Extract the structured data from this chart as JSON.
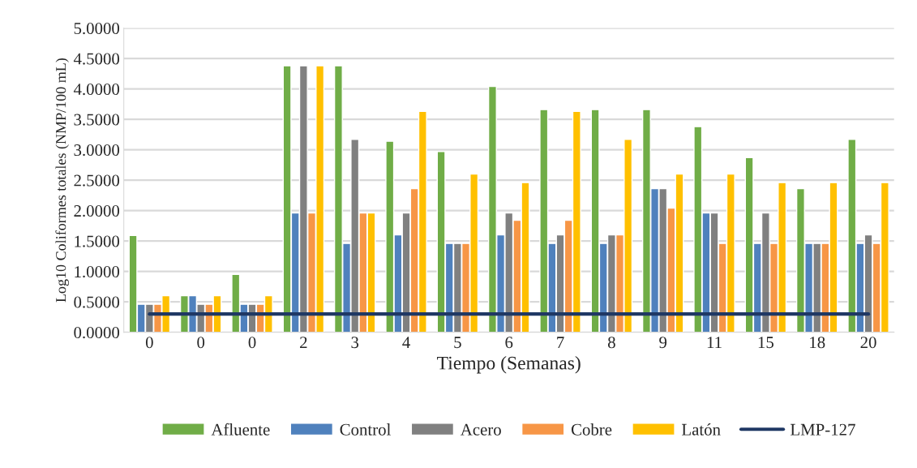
{
  "chart_data": {
    "type": "bar",
    "xlabel": "Tiempo (Semanas)",
    "ylabel": "Log10 Coliformes totales (NMP/100 mL)",
    "categories": [
      "0",
      "0",
      "0",
      "2",
      "3",
      "4",
      "5",
      "6",
      "7",
      "8",
      "9",
      "11",
      "15",
      "18",
      "20"
    ],
    "series": [
      {
        "name": "Afluente",
        "color": "#70ad47",
        "values": [
          1.59,
          0.6,
          0.95,
          4.38,
          4.38,
          3.14,
          2.97,
          4.04,
          3.66,
          3.66,
          3.66,
          3.38,
          2.87,
          2.36,
          3.17
        ]
      },
      {
        "name": "Control",
        "color": "#4f81bd",
        "values": [
          0.46,
          0.6,
          0.46,
          1.96,
          1.46,
          1.6,
          1.46,
          1.6,
          1.46,
          1.46,
          2.36,
          1.96,
          1.46,
          1.46,
          1.46
        ]
      },
      {
        "name": "Acero",
        "color": "#808080",
        "values": [
          0.46,
          0.46,
          0.46,
          4.38,
          3.17,
          1.96,
          1.46,
          1.96,
          1.6,
          1.6,
          2.36,
          1.96,
          1.96,
          1.46,
          1.6
        ]
      },
      {
        "name": "Cobre",
        "color": "#f79646",
        "values": [
          0.46,
          0.46,
          0.46,
          1.96,
          1.96,
          2.36,
          1.46,
          1.84,
          1.84,
          1.6,
          2.04,
          1.46,
          1.46,
          1.46,
          1.46
        ]
      },
      {
        "name": "Latón",
        "color": "#ffc000",
        "values": [
          0.6,
          0.6,
          0.6,
          4.38,
          1.96,
          3.63,
          2.6,
          2.46,
          3.63,
          3.17,
          2.6,
          2.6,
          2.46,
          2.46,
          2.46
        ]
      },
      {
        "name": "LMP-127",
        "type": "line",
        "color": "#1f3864",
        "values": [
          0.3,
          0.3,
          0.3,
          0.3,
          0.3,
          0.3,
          0.3,
          0.3,
          0.3,
          0.3,
          0.3,
          0.3,
          0.3,
          0.3,
          0.3
        ]
      }
    ],
    "ylim": [
      0,
      5
    ],
    "yticks": [
      {
        "value": 0,
        "label": "0.0000"
      },
      {
        "value": 0.5,
        "label": "0.5000"
      },
      {
        "value": 1,
        "label": "1.0000"
      },
      {
        "value": 1.5,
        "label": "1.5000"
      },
      {
        "value": 2,
        "label": "2.0000"
      },
      {
        "value": 2.5,
        "label": "2.5000"
      },
      {
        "value": 3,
        "label": "3.0000"
      },
      {
        "value": 3.5,
        "label": "3.5000"
      },
      {
        "value": 4,
        "label": "4.0000"
      },
      {
        "value": 4.5,
        "label": "4.5000"
      },
      {
        "value": 5,
        "label": "5.0000"
      }
    ],
    "grid": "y",
    "legend": "bottom"
  }
}
